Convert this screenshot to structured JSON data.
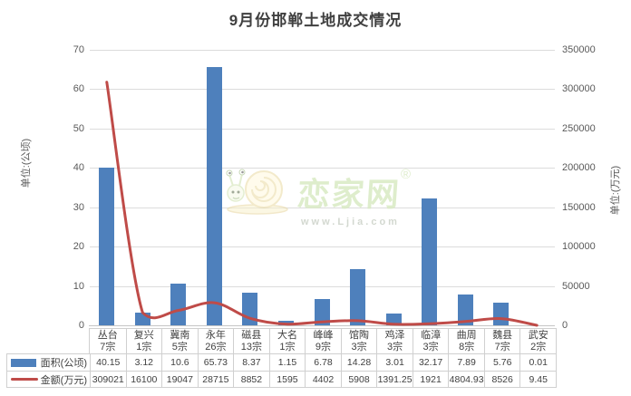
{
  "title": "9月份邯郸土地成交情况",
  "watermark": {
    "icon": "snail-logo",
    "brand": "恋家网",
    "registered_mark": "®",
    "url": "www.Ljia.com"
  },
  "colors": {
    "bar": "#4e80bc",
    "line": "#bf4b48",
    "grid": "#dcdcdc",
    "axis_text": "#595959",
    "title_text": "#404040",
    "table_border": "#d0d0d0",
    "watermark_green": "#d9eac4",
    "watermark_gray": "#ccd2c8"
  },
  "chart_data": {
    "type": "bar+line",
    "title": "9月份邯郸土地成交情况",
    "grid": "horizontal",
    "smooth_line": true,
    "legend_position": "table-left",
    "categories": [
      {
        "name": "丛台",
        "count": "7宗"
      },
      {
        "name": "复兴",
        "count": "1宗"
      },
      {
        "name": "冀南",
        "count": "5宗"
      },
      {
        "name": "永年",
        "count": "26宗"
      },
      {
        "name": "磁县",
        "count": "13宗"
      },
      {
        "name": "大名",
        "count": "1宗"
      },
      {
        "name": "峰峰",
        "count": "9宗"
      },
      {
        "name": "馆陶",
        "count": "3宗"
      },
      {
        "name": "鸡泽",
        "count": "3宗"
      },
      {
        "name": "临漳",
        "count": "3宗"
      },
      {
        "name": "曲周",
        "count": "8宗"
      },
      {
        "name": "魏县",
        "count": "7宗"
      },
      {
        "name": "武安",
        "count": "2宗"
      }
    ],
    "left_axis": {
      "label": "单位:(公顷)",
      "min": 0,
      "max": 70,
      "step": 10
    },
    "right_axis": {
      "label": "单位:(万元)",
      "min": 0,
      "max": 350000,
      "step": 50000
    },
    "series": [
      {
        "name": "面积(公顷)",
        "type": "bar",
        "axis": "left",
        "color": "#4e80bc",
        "values": [
          40.15,
          3.12,
          10.6,
          65.73,
          8.37,
          1.15,
          6.78,
          14.28,
          3.01,
          32.17,
          7.89,
          5.76,
          0.01
        ],
        "labels": [
          "40.15",
          "3.12",
          "10.6",
          "65.73",
          "8.37",
          "1.15",
          "6.78",
          "14.28",
          "3.01",
          "32.17",
          "7.89",
          "5.76",
          "0.01"
        ]
      },
      {
        "name": "金额(万元)",
        "type": "line",
        "axis": "right",
        "color": "#bf4b48",
        "values": [
          309021,
          16100,
          19047,
          28715,
          8852,
          1595,
          4402,
          5908,
          1391.25,
          1921,
          4804.93,
          8526,
          9.45
        ],
        "labels": [
          "309021",
          "16100",
          "19047",
          "28715",
          "8852",
          "1595",
          "4402",
          "5908",
          "1391.25",
          "1921",
          "4804.93",
          "8526",
          "9.45"
        ]
      }
    ]
  }
}
